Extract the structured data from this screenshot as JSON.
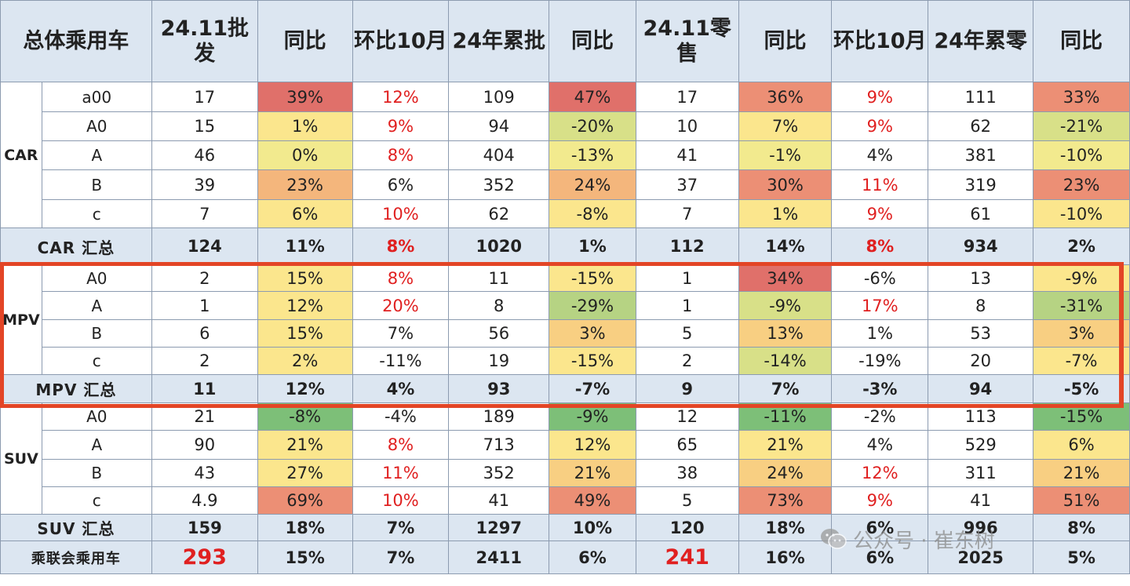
{
  "header": {
    "category": "总体乘用车",
    "wholesale_nov": "24.11批发",
    "yoy": "同比",
    "mom_oct": "环比10月",
    "ytd_wholesale": "24年累批",
    "retail_nov": "24.11零售",
    "ytd_retail": "24年累零"
  },
  "groups": {
    "car": "CAR",
    "mpv": "MPV",
    "suv": "SUV"
  },
  "rows": [
    {
      "seg": "a00",
      "c": [
        "17",
        "39%",
        "12%",
        "109",
        "47%",
        "17",
        "36%",
        "9%",
        "111",
        "33%"
      ],
      "bg": [
        "",
        "c-dr",
        "",
        "",
        "c-dr",
        "",
        "c-r",
        "",
        "",
        "c-r"
      ],
      "red": [
        2,
        7
      ]
    },
    {
      "seg": "A0",
      "c": [
        "15",
        "1%",
        "9%",
        "94",
        "-20%",
        "10",
        "7%",
        "9%",
        "62",
        "-21%"
      ],
      "bg": [
        "",
        "c-y",
        "",
        "",
        "c-lg",
        "",
        "c-y",
        "",
        "",
        "c-lg"
      ],
      "red": [
        2,
        7
      ]
    },
    {
      "seg": "A",
      "c": [
        "46",
        "0%",
        "8%",
        "404",
        "-13%",
        "41",
        "-1%",
        "4%",
        "381",
        "-10%"
      ],
      "bg": [
        "",
        "c-ly",
        "",
        "",
        "c-ly",
        "",
        "c-ly",
        "",
        "",
        "c-ly"
      ],
      "red": [
        2
      ]
    },
    {
      "seg": "B",
      "c": [
        "39",
        "23%",
        "6%",
        "352",
        "24%",
        "37",
        "30%",
        "11%",
        "319",
        "23%"
      ],
      "bg": [
        "",
        "c-o",
        "",
        "",
        "c-o",
        "",
        "c-r",
        "",
        "",
        "c-r"
      ],
      "red": [
        7
      ]
    },
    {
      "seg": "c",
      "c": [
        "7",
        "6%",
        "10%",
        "62",
        "-8%",
        "7",
        "1%",
        "9%",
        "61",
        "-10%"
      ],
      "bg": [
        "",
        "c-y",
        "",
        "",
        "c-y",
        "",
        "c-y",
        "",
        "",
        "c-y"
      ],
      "red": [
        2,
        7
      ]
    },
    {
      "sum": true,
      "label": "CAR 汇总",
      "c": [
        "124",
        "11%",
        "8%",
        "1020",
        "1%",
        "112",
        "14%",
        "8%",
        "934",
        "2%"
      ],
      "bg": [
        "",
        "c-y",
        "",
        "",
        "c-y",
        "",
        "c-lo",
        "",
        "",
        "c-lo"
      ],
      "red": [
        2,
        7
      ]
    },
    {
      "seg": "A0",
      "c": [
        "2",
        "15%",
        "8%",
        "11",
        "-15%",
        "1",
        "34%",
        "-6%",
        "13",
        "-9%"
      ],
      "bg": [
        "",
        "c-y",
        "",
        "",
        "c-y",
        "",
        "c-dr",
        "",
        "",
        "c-y"
      ],
      "red": [
        2
      ]
    },
    {
      "seg": "A",
      "c": [
        "1",
        "12%",
        "20%",
        "8",
        "-29%",
        "1",
        "-9%",
        "17%",
        "8",
        "-31%"
      ],
      "bg": [
        "",
        "c-y",
        "",
        "",
        "c-g",
        "",
        "c-lg",
        "",
        "",
        "c-g"
      ],
      "red": [
        2,
        7
      ]
    },
    {
      "seg": "B",
      "c": [
        "6",
        "15%",
        "7%",
        "56",
        "3%",
        "5",
        "13%",
        "1%",
        "53",
        "3%"
      ],
      "bg": [
        "",
        "c-y",
        "",
        "",
        "c-lo",
        "",
        "c-lo",
        "",
        "",
        "c-lo"
      ],
      "red": []
    },
    {
      "seg": "c",
      "c": [
        "2",
        "2%",
        "-11%",
        "19",
        "-15%",
        "2",
        "-14%",
        "-19%",
        "20",
        "-7%"
      ],
      "bg": [
        "",
        "c-y",
        "",
        "",
        "c-y",
        "",
        "c-lg",
        "",
        "",
        "c-y"
      ],
      "red": []
    },
    {
      "sum": true,
      "label": "MPV 汇总",
      "c": [
        "11",
        "12%",
        "4%",
        "93",
        "-7%",
        "9",
        "7%",
        "-3%",
        "94",
        "-5%"
      ],
      "bg": [
        "",
        "c-y",
        "",
        "",
        "c-y",
        "",
        "c-y",
        "",
        "",
        "c-y"
      ],
      "red": []
    },
    {
      "seg": "A0",
      "c": [
        "21",
        "-8%",
        "-4%",
        "189",
        "-9%",
        "12",
        "-11%",
        "-2%",
        "113",
        "-15%"
      ],
      "bg": [
        "",
        "c-dg",
        "",
        "",
        "c-dg",
        "",
        "c-dg",
        "",
        "",
        "c-dg"
      ],
      "red": []
    },
    {
      "seg": "A",
      "c": [
        "90",
        "21%",
        "8%",
        "713",
        "12%",
        "65",
        "21%",
        "4%",
        "529",
        "6%"
      ],
      "bg": [
        "",
        "c-y",
        "",
        "",
        "c-y",
        "",
        "c-y",
        "",
        "",
        "c-y"
      ],
      "red": [
        2
      ]
    },
    {
      "seg": "B",
      "c": [
        "43",
        "27%",
        "11%",
        "352",
        "21%",
        "38",
        "24%",
        "12%",
        "311",
        "21%"
      ],
      "bg": [
        "",
        "c-y",
        "",
        "",
        "c-lo",
        "",
        "c-lo",
        "",
        "",
        "c-lo"
      ],
      "red": [
        2,
        7
      ]
    },
    {
      "seg": "c",
      "c": [
        "4.9",
        "69%",
        "10%",
        "41",
        "49%",
        "5",
        "73%",
        "9%",
        "41",
        "51%"
      ],
      "bg": [
        "",
        "c-r",
        "",
        "",
        "c-r",
        "",
        "c-r",
        "",
        "",
        "c-r"
      ],
      "red": [
        2,
        7
      ]
    },
    {
      "sum": true,
      "label": "SUV 汇总",
      "c": [
        "159",
        "18%",
        "7%",
        "1297",
        "10%",
        "120",
        "18%",
        "6%",
        "996",
        "8%"
      ],
      "bg": [
        "",
        "c-y",
        "",
        "",
        "c-y",
        "",
        "c-y",
        "",
        "",
        "c-y"
      ],
      "red": []
    },
    {
      "sum": true,
      "total": true,
      "label": "乘联会乘用车",
      "c": [
        "293",
        "15%",
        "7%",
        "2411",
        "6%",
        "241",
        "16%",
        "6%",
        "2025",
        "5%"
      ],
      "bg": [
        "",
        "c-y",
        "",
        "",
        "c-lo",
        "",
        "c-lo",
        "",
        "",
        "c-lo"
      ],
      "red": [
        0,
        5
      ],
      "big": [
        0,
        5
      ]
    }
  ],
  "watermark": "公众号 · 崔东树",
  "colors": {
    "highlight_border": "#e34526",
    "header_bg": "#dce6f1",
    "red_text": "#e02020"
  }
}
